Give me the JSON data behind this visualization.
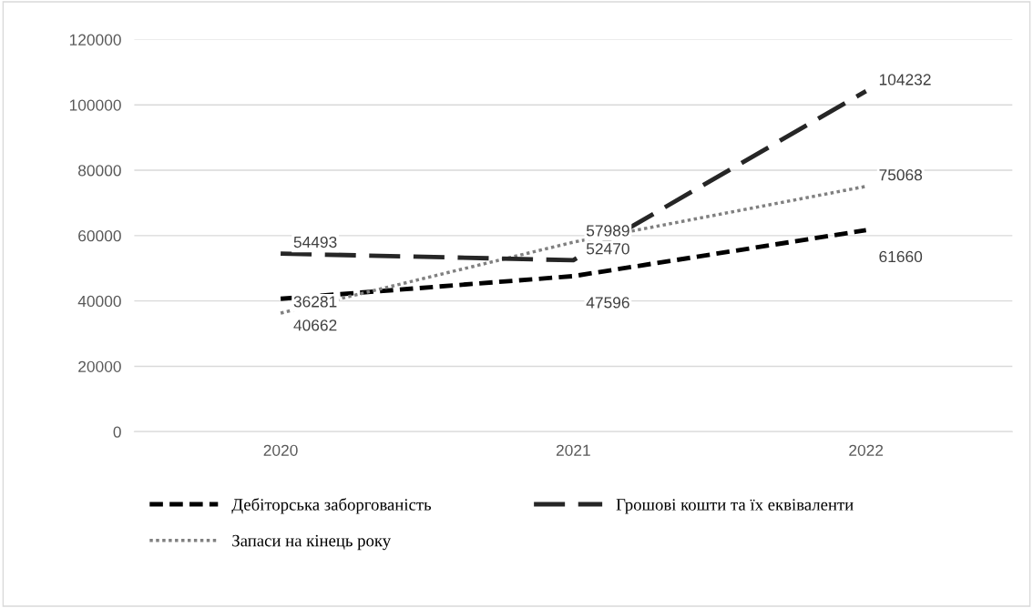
{
  "chart_data": {
    "type": "line",
    "categories": [
      "2020",
      "2021",
      "2022"
    ],
    "series": [
      {
        "name": "Дебіторська заборгованість",
        "color": "#000000",
        "line_style": "dashed",
        "values": [
          40662,
          47596,
          61660
        ]
      },
      {
        "name": "Запаси на кінець року",
        "color": "#808080",
        "line_style": "dotted",
        "values": [
          36281,
          57989,
          75068
        ]
      },
      {
        "name": "Грошові кошти та їх еквіваленти",
        "color": "#262626",
        "line_style": "dashed",
        "values": [
          54493,
          52470,
          104232
        ]
      }
    ],
    "ylim": [
      0,
      120000
    ],
    "yticks": [
      0,
      20000,
      40000,
      60000,
      80000,
      100000,
      120000
    ],
    "grid": "y",
    "legend": "bottom",
    "data_labels": true,
    "marker": "none"
  }
}
